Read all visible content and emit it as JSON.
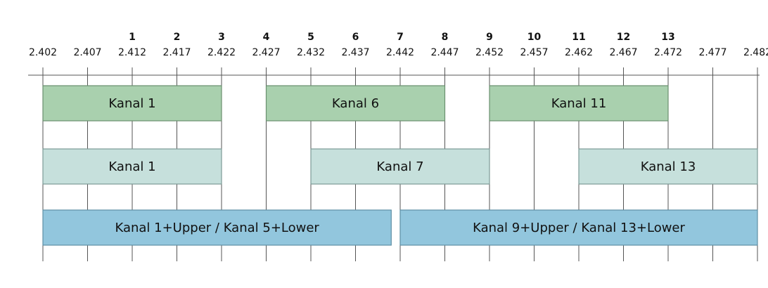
{
  "frequencies": [
    "2.402",
    "2.407",
    "2.412",
    "2.417",
    "2.422",
    "2.427",
    "2.432",
    "2.437",
    "2.442",
    "2.447",
    "2.452",
    "2.457",
    "2.462",
    "2.467",
    "2.472",
    "2.477",
    "2.482"
  ],
  "channels": [
    {
      "num": "1",
      "at": 2
    },
    {
      "num": "2",
      "at": 3
    },
    {
      "num": "3",
      "at": 4
    },
    {
      "num": "4",
      "at": 5
    },
    {
      "num": "5",
      "at": 6
    },
    {
      "num": "6",
      "at": 7
    },
    {
      "num": "7",
      "at": 8
    },
    {
      "num": "8",
      "at": 9
    },
    {
      "num": "9",
      "at": 10
    },
    {
      "num": "10",
      "at": 11
    },
    {
      "num": "11",
      "at": 12
    },
    {
      "num": "12",
      "at": 13
    },
    {
      "num": "13",
      "at": 14
    }
  ],
  "rows": [
    {
      "color": "#a9d0ae",
      "border": "#6a8f6f",
      "bands": [
        {
          "label": "Kanal 1",
          "start": 0,
          "end": 4
        },
        {
          "label": "Kanal 6",
          "start": 5,
          "end": 9
        },
        {
          "label": "Kanal 11",
          "start": 10,
          "end": 14
        }
      ]
    },
    {
      "color": "#c6e0dc",
      "border": "#7d9a96",
      "bands": [
        {
          "label": "Kanal 1",
          "start": 0,
          "end": 4
        },
        {
          "label": "Kanal 7",
          "start": 6,
          "end": 10
        },
        {
          "label": "Kanal 13",
          "start": 12,
          "end": 16
        }
      ]
    },
    {
      "color": "#92c6dd",
      "border": "#5f8fa5",
      "bands": [
        {
          "label": "Kanal 1+Upper / Kanal 5+Lower",
          "start": 0,
          "end": 7.8
        },
        {
          "label": "Kanal 9+Upper / Kanal 13+Lower",
          "start": 8.0,
          "end": 16
        }
      ]
    }
  ]
}
